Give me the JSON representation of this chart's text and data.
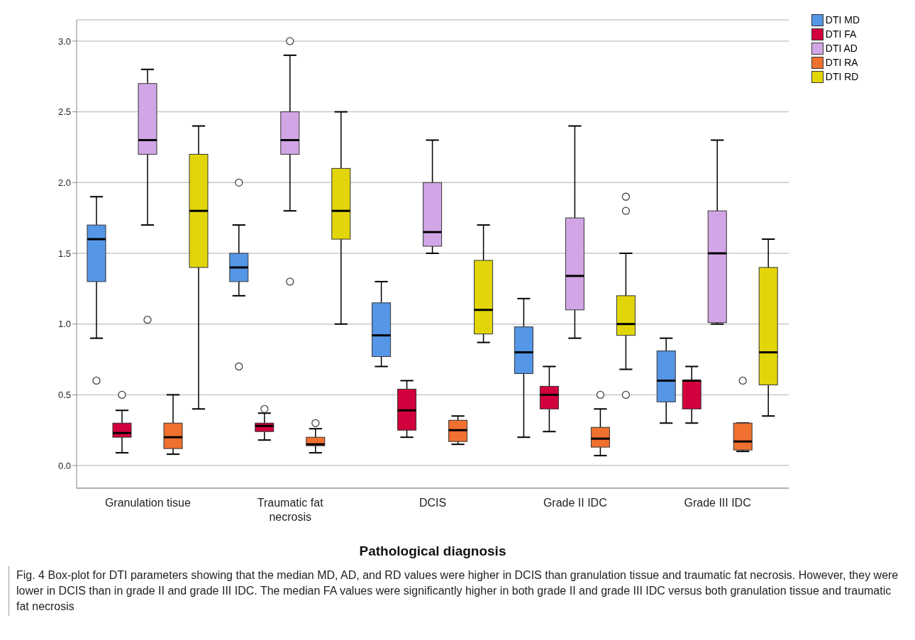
{
  "chart_data": {
    "type": "box",
    "xlabel": "Pathological diagnosis",
    "categories": [
      "Granulation tisue",
      "Traumatic fat necrosis",
      "DCIS",
      "Grade II IDC",
      "Grade III IDC"
    ],
    "ylim": [
      -0.16,
      3.15
    ],
    "yticks": [
      {
        "value": 0,
        "label": "0.0"
      },
      {
        "value": 0.5,
        "label": "0.5"
      },
      {
        "value": 1,
        "label": "1.0"
      },
      {
        "value": 1.5,
        "label": "1.5"
      },
      {
        "value": 2,
        "label": "2.0"
      },
      {
        "value": 2.5,
        "label": "2.5"
      },
      {
        "value": 3,
        "label": "3.0"
      }
    ],
    "grid": "y",
    "legend": "top right",
    "series": [
      {
        "name": "DTI MD",
        "color": "#5596e6",
        "boxes": [
          {
            "low": 0.9,
            "q1": 1.3,
            "median": 1.6,
            "q3": 1.7,
            "high": 1.9,
            "outliers": [
              0.6
            ]
          },
          {
            "low": 1.2,
            "q1": 1.3,
            "median": 1.4,
            "q3": 1.5,
            "high": 1.7,
            "outliers": [
              2.0,
              0.7
            ]
          },
          {
            "low": 0.7,
            "q1": 0.77,
            "median": 0.92,
            "q3": 1.15,
            "high": 1.3
          },
          {
            "low": 0.2,
            "q1": 0.65,
            "median": 0.8,
            "q3": 0.98,
            "high": 1.18
          },
          {
            "low": 0.3,
            "q1": 0.45,
            "median": 0.6,
            "q3": 0.81,
            "high": 0.9
          }
        ]
      },
      {
        "name": "DTI FA",
        "color": "#d2003c",
        "boxes": [
          {
            "low": 0.09,
            "q1": 0.2,
            "median": 0.23,
            "q3": 0.3,
            "high": 0.39,
            "outliers": [
              0.5
            ]
          },
          {
            "low": 0.18,
            "q1": 0.24,
            "median": 0.28,
            "q3": 0.3,
            "high": 0.37,
            "outliers": [
              0.4
            ]
          },
          {
            "low": 0.2,
            "q1": 0.25,
            "median": 0.39,
            "q3": 0.54,
            "high": 0.6
          },
          {
            "low": 0.24,
            "q1": 0.4,
            "median": 0.5,
            "q3": 0.56,
            "high": 0.7
          },
          {
            "low": 0.3,
            "q1": 0.4,
            "median": 0.6,
            "q3": 0.6,
            "high": 0.7
          }
        ]
      },
      {
        "name": "DTI AD",
        "color": "#d2a6e6",
        "boxes": [
          {
            "low": 1.7,
            "q1": 2.2,
            "median": 2.3,
            "q3": 2.7,
            "high": 2.8,
            "outliers": [
              1.03
            ]
          },
          {
            "low": 1.8,
            "q1": 2.2,
            "median": 2.3,
            "q3": 2.5,
            "high": 2.9,
            "outliers": [
              3.0,
              1.3
            ]
          },
          {
            "low": 1.5,
            "q1": 1.55,
            "median": 1.65,
            "q3": 2.0,
            "high": 2.3
          },
          {
            "low": 0.9,
            "q1": 1.1,
            "median": 1.34,
            "q3": 1.75,
            "high": 2.4
          },
          {
            "low": 1.0,
            "q1": 1.01,
            "median": 1.5,
            "q3": 1.8,
            "high": 2.3
          }
        ]
      },
      {
        "name": "DTI RA",
        "color": "#f07030",
        "boxes": [
          {
            "low": 0.08,
            "q1": 0.12,
            "median": 0.2,
            "q3": 0.3,
            "high": 0.5
          },
          {
            "low": 0.09,
            "q1": 0.14,
            "median": 0.15,
            "q3": 0.2,
            "high": 0.26,
            "outliers": [
              0.3
            ]
          },
          {
            "low": 0.15,
            "q1": 0.17,
            "median": 0.25,
            "q3": 0.32,
            "high": 0.35
          },
          {
            "low": 0.07,
            "q1": 0.13,
            "median": 0.19,
            "q3": 0.27,
            "high": 0.4,
            "outliers": [
              0.5
            ]
          },
          {
            "low": 0.1,
            "q1": 0.11,
            "median": 0.17,
            "q3": 0.3,
            "high": 0.3,
            "outliers": [
              0.6
            ]
          }
        ]
      },
      {
        "name": "DTI RD",
        "color": "#e2d60a",
        "boxes": [
          {
            "low": 0.4,
            "q1": 1.4,
            "median": 1.8,
            "q3": 2.2,
            "high": 2.4
          },
          {
            "low": 1.0,
            "q1": 1.6,
            "median": 1.8,
            "q3": 2.1,
            "high": 2.5
          },
          {
            "low": 0.87,
            "q1": 0.93,
            "median": 1.1,
            "q3": 1.45,
            "high": 1.7
          },
          {
            "low": 0.68,
            "q1": 0.92,
            "median": 1.0,
            "q3": 1.2,
            "high": 1.5,
            "outliers": [
              1.9,
              1.8,
              0.5
            ]
          },
          {
            "low": 0.35,
            "q1": 0.57,
            "median": 0.8,
            "q3": 1.4,
            "high": 1.6
          }
        ]
      }
    ],
    "annotations": [
      "Fig. 4 Box-plot for DTI parameters showing that the median MD, AD, and RD values were higher in DCIS than granulation tissue and traumatic fat necrosis. However, they were lower in DCIS than in grade II and grade III IDC. The median FA values were significantly higher in both grade II and grade III IDC versus both granulation tissue and traumatic fat necrosis"
    ]
  }
}
